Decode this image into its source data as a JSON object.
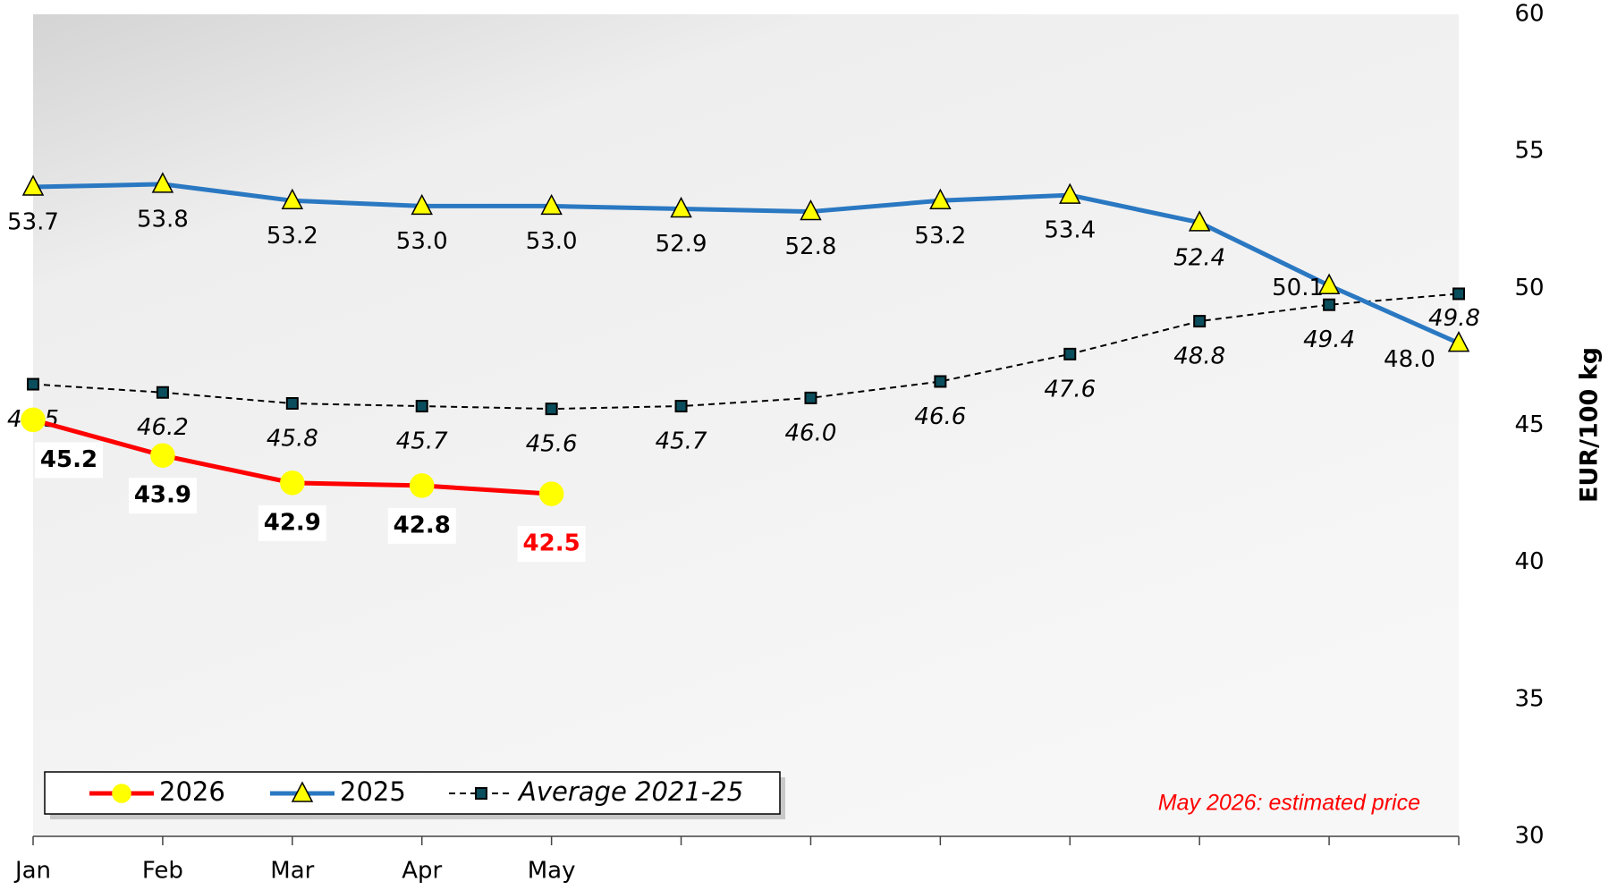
{
  "chart_data": {
    "type": "line",
    "categories": [
      "Jan",
      "Feb",
      "Mar",
      "Apr",
      "May",
      null,
      null,
      null,
      null,
      null,
      null,
      null
    ],
    "series": [
      {
        "name": "2026",
        "color": "#ff0000",
        "marker": "circle",
        "marker_color": "#ffff00",
        "values": [
          45.2,
          43.9,
          42.9,
          42.8,
          42.5,
          null,
          null,
          null,
          null,
          null,
          null,
          null
        ],
        "value_labels": [
          "45.2",
          "43.9",
          "42.9",
          "42.8",
          "42.5",
          null,
          null,
          null,
          null,
          null,
          null,
          null
        ]
      },
      {
        "name": "2025",
        "color": "#2a78c2",
        "marker": "triangle",
        "marker_color": "#ffff00",
        "values": [
          53.7,
          53.8,
          53.2,
          53.0,
          53.0,
          52.9,
          52.8,
          53.2,
          53.4,
          52.4,
          50.1,
          48.0
        ],
        "value_labels": [
          "53.7",
          "53.8",
          "53.2",
          "53.0",
          "53.0",
          "52.9",
          "52.8",
          "53.2",
          "53.4",
          "52.4",
          "50.1",
          "48.0"
        ]
      },
      {
        "name": "Average 2021-25",
        "color": "#000000",
        "marker": "square",
        "marker_color": "#0a4d5c",
        "dashed": true,
        "values": [
          46.5,
          46.2,
          45.8,
          45.7,
          45.6,
          45.7,
          46.0,
          46.6,
          47.6,
          48.8,
          49.4,
          49.8
        ],
        "value_labels": [
          "46.5",
          "46.2",
          "45.8",
          "45.7",
          "45.6",
          "45.7",
          "46.0",
          "46.6",
          "47.6",
          "48.8",
          "49.4",
          "49.8"
        ]
      }
    ],
    "ylim": [
      30,
      60
    ],
    "yticks": [
      30,
      35,
      40,
      45,
      50,
      55,
      60
    ],
    "y_label": "EUR/100 kg",
    "annotation": "May 2026: estimated price"
  }
}
